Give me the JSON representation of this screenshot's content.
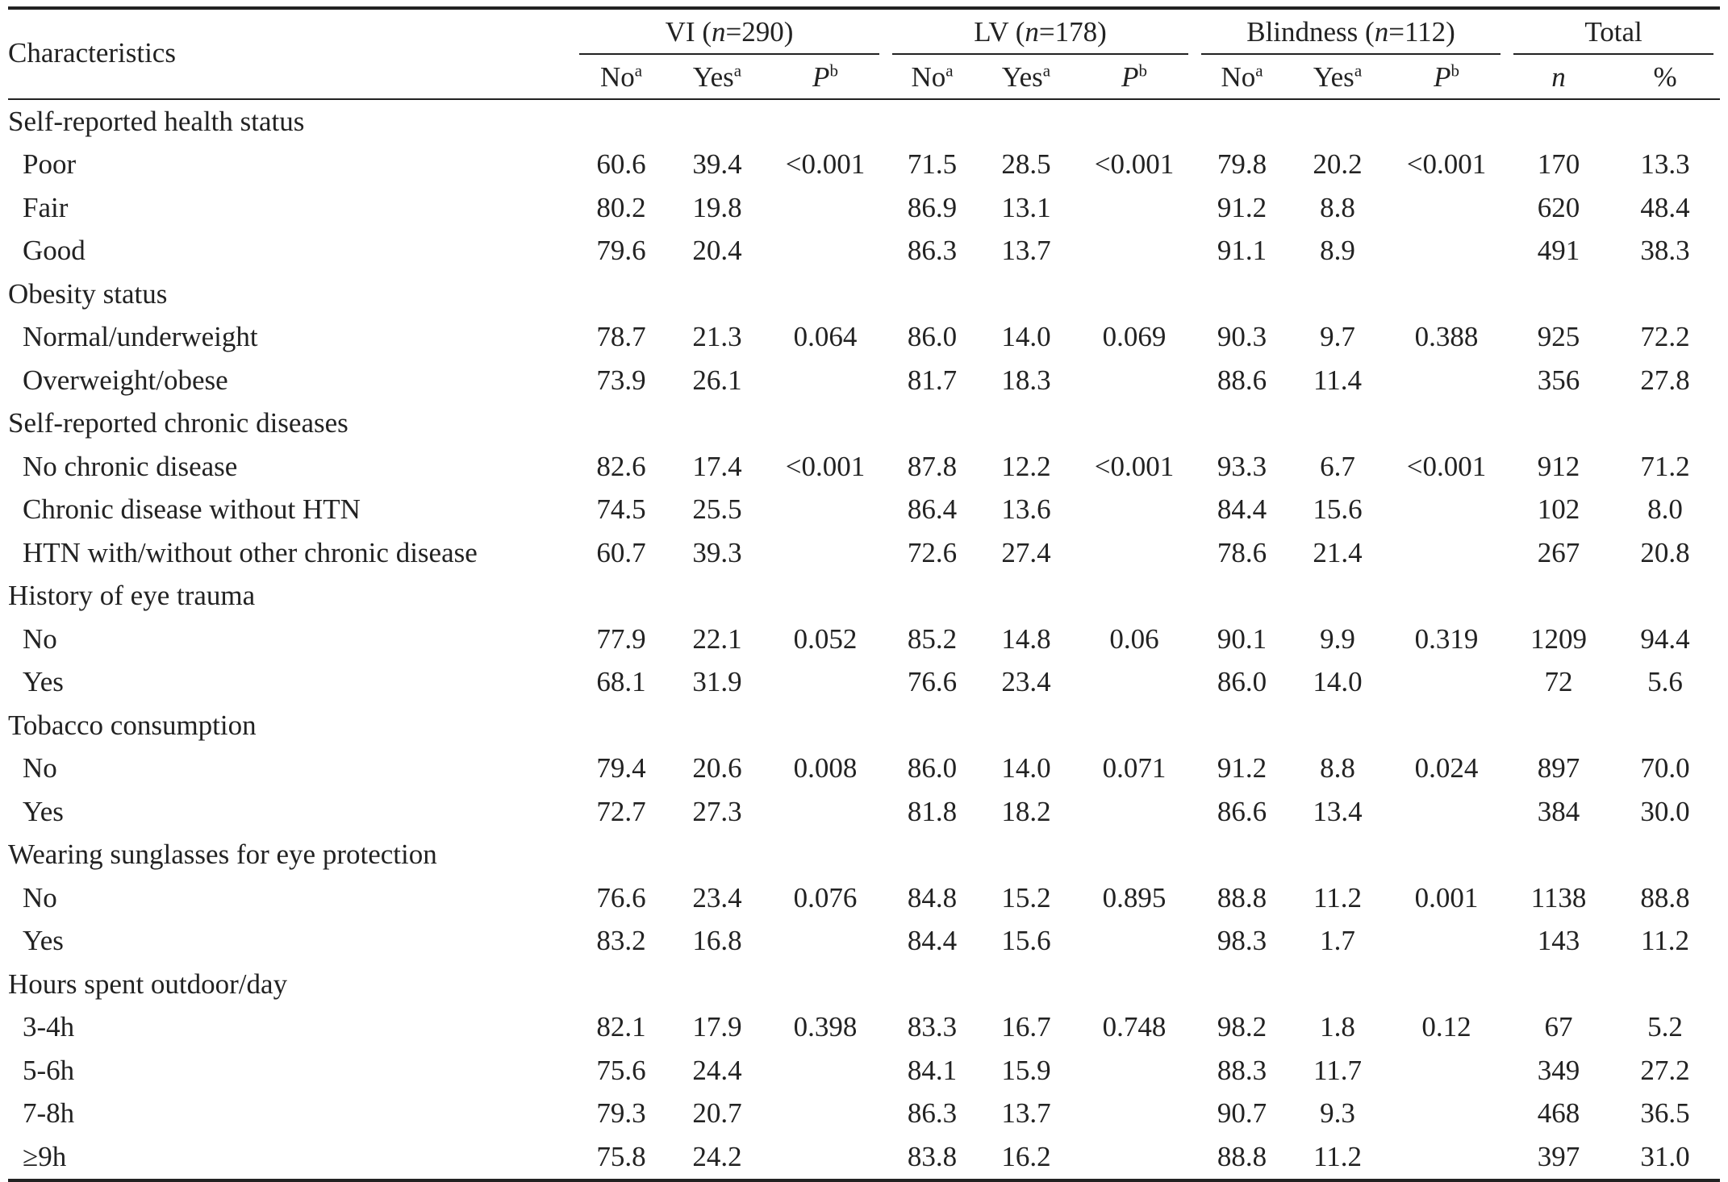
{
  "header": {
    "characteristics": "Characteristics",
    "groups": [
      {
        "name": "VI",
        "n_label": "n",
        "n_value": "=290"
      },
      {
        "name": "LV",
        "n_label": "n",
        "n_value": "=178"
      },
      {
        "name": "Blindness",
        "n_label": "n",
        "n_value": "=112"
      },
      {
        "name": "Total"
      }
    ],
    "sub": {
      "no": "No",
      "yes": "Yes",
      "sup_a": "a",
      "p": "P",
      "sup_b": "b",
      "n": "n",
      "pct": "%"
    }
  },
  "sections": [
    {
      "title": "Self-reported health status",
      "rows": [
        {
          "label": "Poor",
          "vi": [
            "60.6",
            "39.4",
            "<0.001"
          ],
          "lv": [
            "71.5",
            "28.5",
            "<0.001"
          ],
          "bl": [
            "79.8",
            "20.2",
            "<0.001"
          ],
          "total": [
            "170",
            "13.3"
          ]
        },
        {
          "label": "Fair",
          "vi": [
            "80.2",
            "19.8",
            ""
          ],
          "lv": [
            "86.9",
            "13.1",
            ""
          ],
          "bl": [
            "91.2",
            "8.8",
            ""
          ],
          "total": [
            "620",
            "48.4"
          ]
        },
        {
          "label": "Good",
          "vi": [
            "79.6",
            "20.4",
            ""
          ],
          "lv": [
            "86.3",
            "13.7",
            ""
          ],
          "bl": [
            "91.1",
            "8.9",
            ""
          ],
          "total": [
            "491",
            "38.3"
          ]
        }
      ]
    },
    {
      "title": "Obesity status",
      "rows": [
        {
          "label": "Normal/underweight",
          "vi": [
            "78.7",
            "21.3",
            "0.064"
          ],
          "lv": [
            "86.0",
            "14.0",
            "0.069"
          ],
          "bl": [
            "90.3",
            "9.7",
            "0.388"
          ],
          "total": [
            "925",
            "72.2"
          ]
        },
        {
          "label": "Overweight/obese",
          "vi": [
            "73.9",
            "26.1",
            ""
          ],
          "lv": [
            "81.7",
            "18.3",
            ""
          ],
          "bl": [
            "88.6",
            "11.4",
            ""
          ],
          "total": [
            "356",
            "27.8"
          ]
        }
      ]
    },
    {
      "title": "Self-reported chronic diseases",
      "rows": [
        {
          "label": "No chronic disease",
          "vi": [
            "82.6",
            "17.4",
            "<0.001"
          ],
          "lv": [
            "87.8",
            "12.2",
            "<0.001"
          ],
          "bl": [
            "93.3",
            "6.7",
            "<0.001"
          ],
          "total": [
            "912",
            "71.2"
          ]
        },
        {
          "label": "Chronic disease without HTN",
          "vi": [
            "74.5",
            "25.5",
            ""
          ],
          "lv": [
            "86.4",
            "13.6",
            ""
          ],
          "bl": [
            "84.4",
            "15.6",
            ""
          ],
          "total": [
            "102",
            "8.0"
          ]
        },
        {
          "label": "HTN with/without other chronic disease",
          "vi": [
            "60.7",
            "39.3",
            ""
          ],
          "lv": [
            "72.6",
            "27.4",
            ""
          ],
          "bl": [
            "78.6",
            "21.4",
            ""
          ],
          "total": [
            "267",
            "20.8"
          ]
        }
      ]
    },
    {
      "title": "History of eye trauma",
      "rows": [
        {
          "label": "No",
          "vi": [
            "77.9",
            "22.1",
            "0.052"
          ],
          "lv": [
            "85.2",
            "14.8",
            "0.06"
          ],
          "bl": [
            "90.1",
            "9.9",
            "0.319"
          ],
          "total": [
            "1209",
            "94.4"
          ]
        },
        {
          "label": "Yes",
          "vi": [
            "68.1",
            "31.9",
            ""
          ],
          "lv": [
            "76.6",
            "23.4",
            ""
          ],
          "bl": [
            "86.0",
            "14.0",
            ""
          ],
          "total": [
            "72",
            "5.6"
          ]
        }
      ]
    },
    {
      "title": "Tobacco consumption",
      "rows": [
        {
          "label": "No",
          "vi": [
            "79.4",
            "20.6",
            "0.008"
          ],
          "lv": [
            "86.0",
            "14.0",
            "0.071"
          ],
          "bl": [
            "91.2",
            "8.8",
            "0.024"
          ],
          "total": [
            "897",
            "70.0"
          ]
        },
        {
          "label": "Yes",
          "vi": [
            "72.7",
            "27.3",
            ""
          ],
          "lv": [
            "81.8",
            "18.2",
            ""
          ],
          "bl": [
            "86.6",
            "13.4",
            ""
          ],
          "total": [
            "384",
            "30.0"
          ]
        }
      ]
    },
    {
      "title": "Wearing sunglasses for eye protection",
      "rows": [
        {
          "label": "No",
          "vi": [
            "76.6",
            "23.4",
            "0.076"
          ],
          "lv": [
            "84.8",
            "15.2",
            "0.895"
          ],
          "bl": [
            "88.8",
            "11.2",
            "0.001"
          ],
          "total": [
            "1138",
            "88.8"
          ]
        },
        {
          "label": "Yes",
          "vi": [
            "83.2",
            "16.8",
            ""
          ],
          "lv": [
            "84.4",
            "15.6",
            ""
          ],
          "bl": [
            "98.3",
            "1.7",
            ""
          ],
          "total": [
            "143",
            "11.2"
          ]
        }
      ]
    },
    {
      "title": "Hours spent outdoor/day",
      "rows": [
        {
          "label": "3-4h",
          "vi": [
            "82.1",
            "17.9",
            "0.398"
          ],
          "lv": [
            "83.3",
            "16.7",
            "0.748"
          ],
          "bl": [
            "98.2",
            "1.8",
            "0.12"
          ],
          "total": [
            "67",
            "5.2"
          ]
        },
        {
          "label": "5-6h",
          "vi": [
            "75.6",
            "24.4",
            ""
          ],
          "lv": [
            "84.1",
            "15.9",
            ""
          ],
          "bl": [
            "88.3",
            "11.7",
            ""
          ],
          "total": [
            "349",
            "27.2"
          ]
        },
        {
          "label": "7-8h",
          "vi": [
            "79.3",
            "20.7",
            ""
          ],
          "lv": [
            "86.3",
            "13.7",
            ""
          ],
          "bl": [
            "90.7",
            "9.3",
            ""
          ],
          "total": [
            "468",
            "36.5"
          ]
        },
        {
          "label": "≥9h",
          "vi": [
            "75.8",
            "24.2",
            ""
          ],
          "lv": [
            "83.8",
            "16.2",
            ""
          ],
          "bl": [
            "88.8",
            "11.2",
            ""
          ],
          "total": [
            "397",
            "31.0"
          ]
        }
      ]
    }
  ]
}
